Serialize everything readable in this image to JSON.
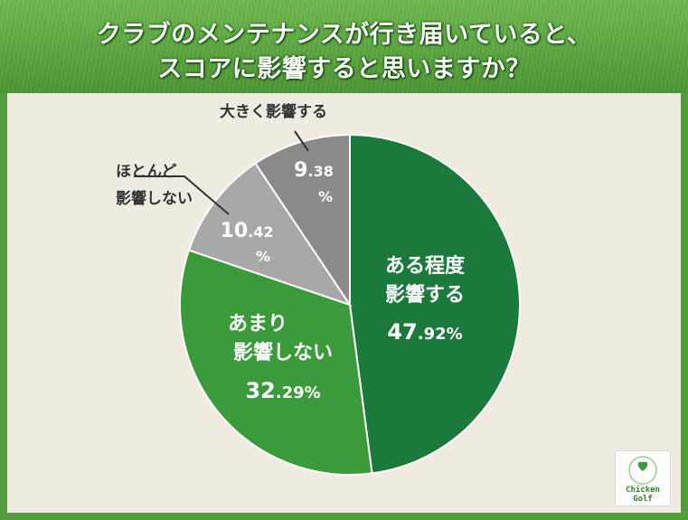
{
  "title_lines": [
    "クラブのメンテナンスが行き届いていると、",
    "スコアに影響すると思いますか？"
  ],
  "chart_data": {
    "type": "pie",
    "start_angle_deg": 0,
    "direction": "clockwise",
    "slices": [
      {
        "label_lines": [
          "ある程度",
          "影響する"
        ],
        "value": 47.92,
        "int": "47",
        "dec": ".92",
        "pct": "%",
        "color": "#1c793c"
      },
      {
        "label_lines": [
          "あまり",
          "影響しない"
        ],
        "value": 32.29,
        "int": "32",
        "dec": ".29",
        "pct": "%",
        "color": "#3b9a3a"
      },
      {
        "label_lines": [
          "ほとんど",
          "影響しない"
        ],
        "value": 10.42,
        "int": "10",
        "dec": ".42",
        "pct": "%",
        "color": "#a8a8a8"
      },
      {
        "label_lines": [
          "大きく影響する"
        ],
        "value": 9.38,
        "int": "9",
        "dec": ".38",
        "pct": "%",
        "color": "#8a8a8a"
      }
    ]
  },
  "logo": {
    "text_lines": [
      "Chicken",
      "Golf"
    ],
    "brand_color": "#2e7d32"
  }
}
